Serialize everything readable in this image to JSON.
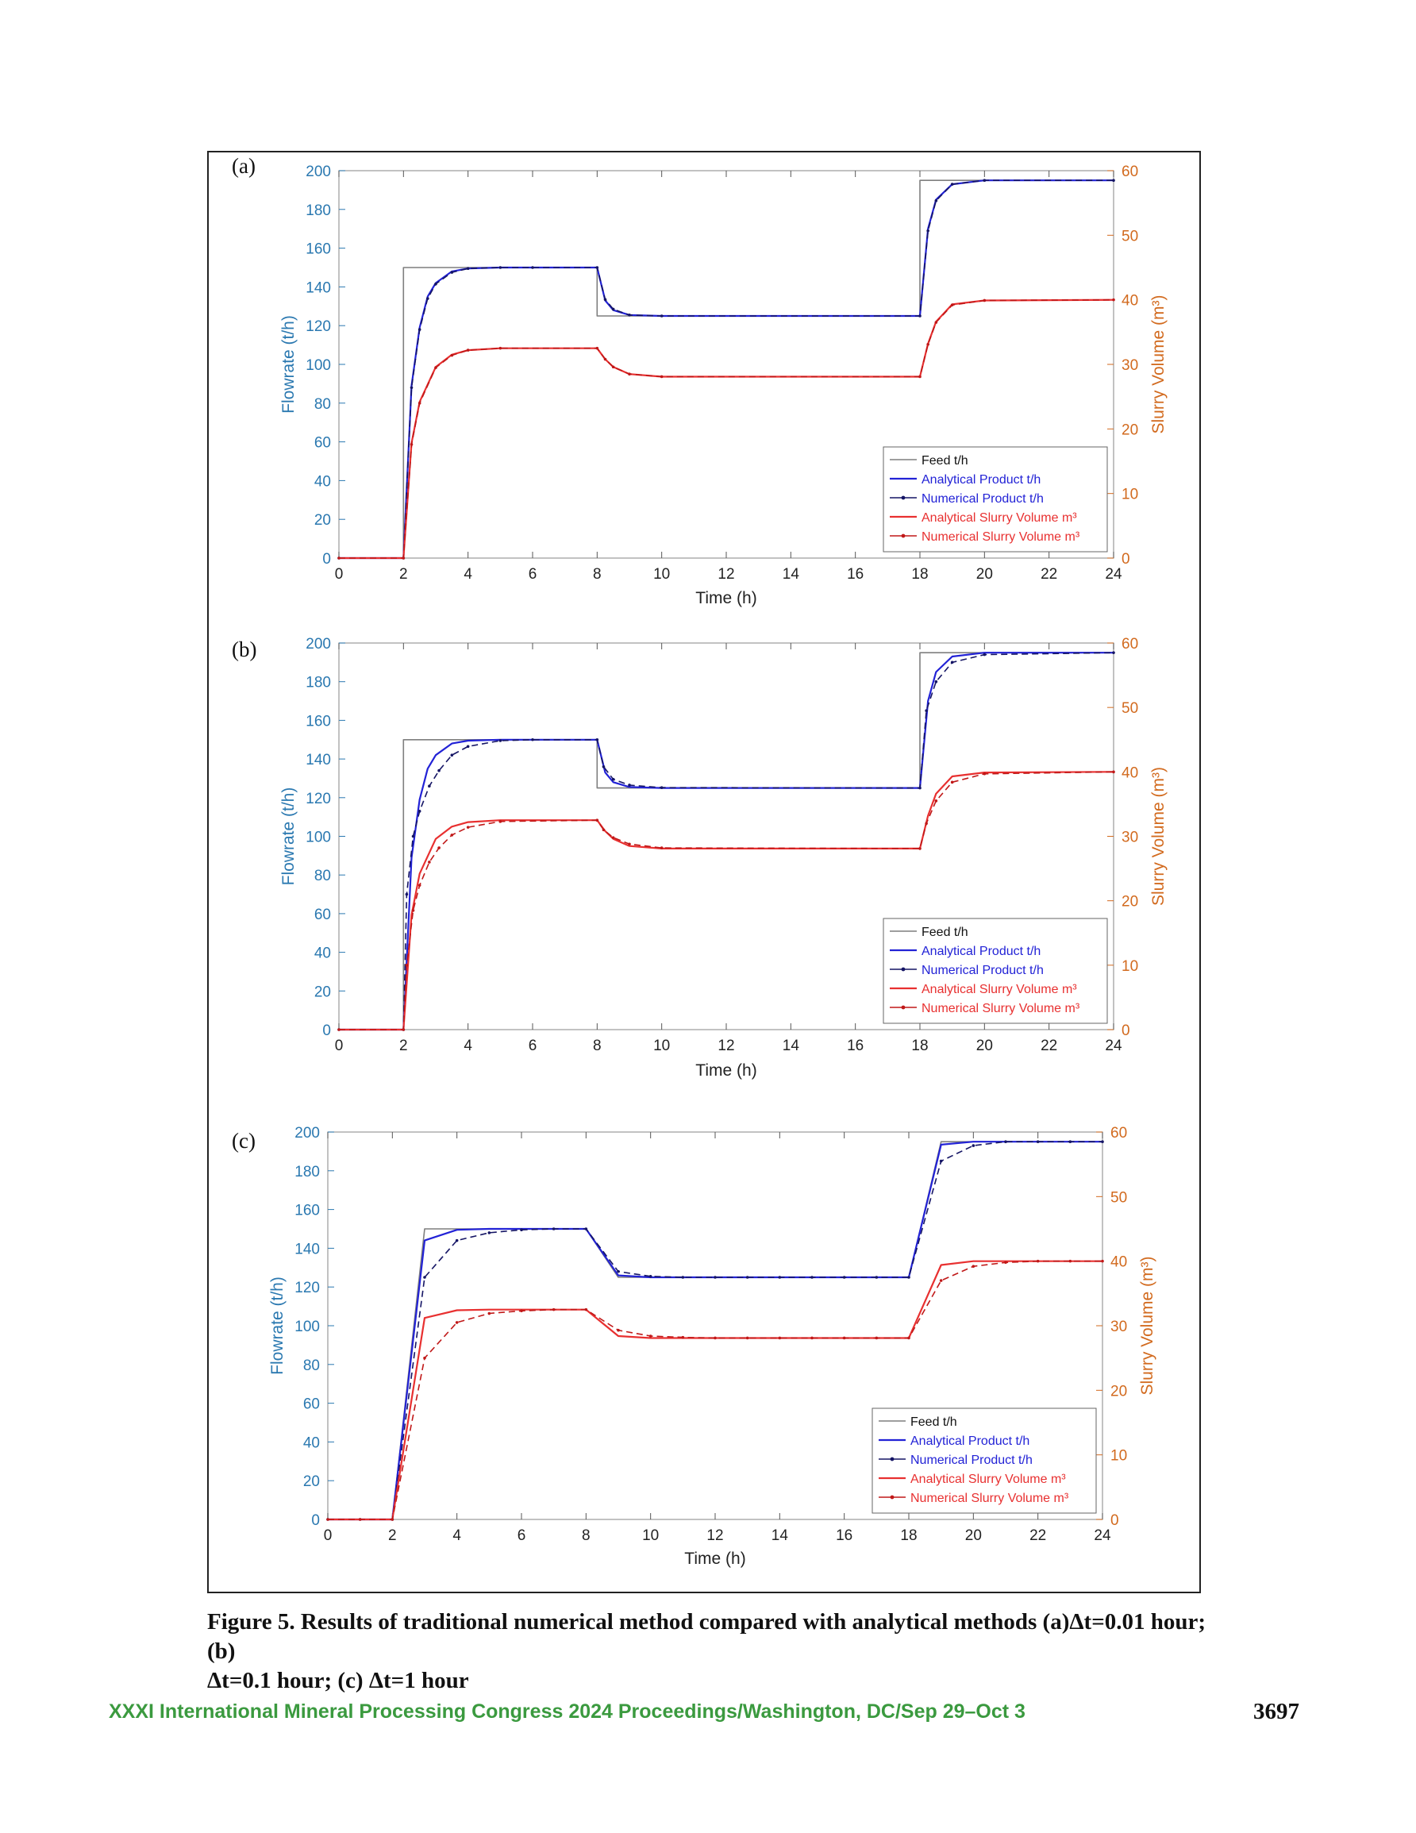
{
  "figure": {
    "caption_line1": "Figure 5. Results of traditional numerical method compared with analytical methods (a)Δt=0.01 hour; (b)",
    "caption_line2": "Δt=0.1 hour; (c) Δt=1 hour"
  },
  "footer": {
    "conference": "XXXI International Mineral Processing Congress 2024 Proceedings/Washington, DC/Sep 29–Oct 3",
    "page_number": "3697"
  },
  "colors": {
    "feed": "#7f7f7f",
    "analytical_product": "#2222d6",
    "numerical_product": "#151565",
    "analytical_slurry": "#e83030",
    "numerical_slurry": "#c01818",
    "left_axis": "#2a78b0",
    "right_axis": "#d26a1e"
  },
  "chart_data": [
    {
      "type": "line",
      "panel_label": "(a)",
      "xlabel": "Time (h)",
      "ylabel": "Flowrate (t/h)",
      "ylabel_right": "Slurry Volume (m³)",
      "xlim": [
        0,
        24
      ],
      "ylim": [
        0,
        200
      ],
      "ylim_right": [
        0,
        60
      ],
      "x_ticks": [
        0,
        2,
        4,
        6,
        8,
        10,
        12,
        14,
        16,
        18,
        20,
        22,
        24
      ],
      "y_ticks": [
        0,
        20,
        40,
        60,
        80,
        100,
        120,
        140,
        160,
        180,
        200
      ],
      "y_right_ticks": [
        0,
        10,
        20,
        30,
        40,
        50,
        60
      ],
      "legend_position": "bottom-right",
      "legend": [
        "Feed t/h",
        "Analytical Product t/h",
        "Numerical Product t/h",
        "Analytical Slurry Volume m³",
        "Numerical Slurry Volume m³"
      ],
      "series": [
        {
          "name": "Feed t/h",
          "axis": "left",
          "x": [
            0,
            2,
            2,
            8,
            8,
            18,
            18,
            24
          ],
          "y": [
            0,
            0,
            150,
            150,
            125,
            125,
            195,
            195
          ]
        },
        {
          "name": "Analytical Product t/h",
          "axis": "left",
          "x": [
            0,
            2,
            2.25,
            2.5,
            2.75,
            3,
            3.5,
            4,
            5,
            6,
            8,
            8.25,
            8.5,
            9,
            10,
            18,
            18.25,
            18.5,
            19,
            20,
            24
          ],
          "y": [
            0,
            0,
            89,
            119,
            135,
            142,
            148,
            149.5,
            150,
            150,
            150,
            133,
            128,
            125.5,
            125,
            125,
            170,
            185,
            193,
            195,
            195
          ]
        },
        {
          "name": "Numerical Product t/h",
          "axis": "left",
          "x": [
            0,
            2,
            2.25,
            2.5,
            2.75,
            3,
            3.5,
            4,
            5,
            6,
            8,
            8.25,
            8.5,
            9,
            10,
            18,
            18.25,
            18.5,
            19,
            20,
            24
          ],
          "y": [
            0,
            0,
            88,
            118,
            134,
            141.5,
            147.5,
            149.5,
            150,
            150,
            150,
            133.5,
            128.5,
            125.5,
            125,
            125,
            169,
            184.5,
            193,
            195,
            195
          ]
        },
        {
          "name": "Analytical Slurry Volume m³",
          "axis": "right",
          "x": [
            0,
            2,
            2.25,
            2.5,
            3,
            3.5,
            4,
            5,
            8,
            8.25,
            8.5,
            9,
            10,
            18,
            18.25,
            18.5,
            19,
            20,
            24
          ],
          "y": [
            0,
            0,
            17.8,
            24.2,
            29.6,
            31.5,
            32.2,
            32.5,
            32.5,
            30.8,
            29.6,
            28.5,
            28.1,
            28.1,
            33.2,
            36.6,
            39.3,
            39.9,
            40
          ]
        },
        {
          "name": "Numerical Slurry Volume m³",
          "axis": "right",
          "x": [
            0,
            2,
            2.25,
            2.5,
            3,
            3.5,
            4,
            5,
            8,
            8.25,
            8.5,
            9,
            10,
            18,
            18.25,
            18.5,
            19,
            20,
            24
          ],
          "y": [
            0,
            0,
            17.6,
            24.0,
            29.5,
            31.4,
            32.2,
            32.5,
            32.5,
            30.8,
            29.6,
            28.5,
            28.1,
            28.1,
            33.1,
            36.5,
            39.2,
            39.9,
            40
          ]
        }
      ]
    },
    {
      "type": "line",
      "panel_label": "(b)",
      "xlabel": "Time (h)",
      "ylabel": "Flowrate (t/h)",
      "ylabel_right": "Slurry Volume (m³)",
      "xlim": [
        0,
        24
      ],
      "ylim": [
        0,
        200
      ],
      "ylim_right": [
        0,
        60
      ],
      "x_ticks": [
        0,
        2,
        4,
        6,
        8,
        10,
        12,
        14,
        16,
        18,
        20,
        22,
        24
      ],
      "y_ticks": [
        0,
        20,
        40,
        60,
        80,
        100,
        120,
        140,
        160,
        180,
        200
      ],
      "y_right_ticks": [
        0,
        10,
        20,
        30,
        40,
        50,
        60
      ],
      "legend_position": "bottom-right",
      "legend": [
        "Feed t/h",
        "Analytical Product t/h",
        "Numerical Product t/h",
        "Analytical Slurry Volume m³",
        "Numerical Slurry Volume m³"
      ],
      "series": [
        {
          "name": "Feed t/h",
          "axis": "left",
          "x": [
            0,
            2,
            2,
            8,
            8,
            18,
            18,
            24
          ],
          "y": [
            0,
            0,
            150,
            150,
            125,
            125,
            195,
            195
          ]
        },
        {
          "name": "Analytical Product t/h",
          "axis": "left",
          "x": [
            0,
            2,
            2.25,
            2.5,
            2.75,
            3,
            3.5,
            4,
            5,
            6,
            8,
            8.25,
            8.5,
            9,
            10,
            18,
            18.25,
            18.5,
            19,
            20,
            24
          ],
          "y": [
            0,
            0,
            89,
            119,
            135,
            142,
            148,
            149.5,
            150,
            150,
            150,
            133,
            128,
            125.5,
            125,
            125,
            170,
            185,
            193,
            195,
            195
          ]
        },
        {
          "name": "Numerical Product t/h",
          "axis": "left",
          "x": [
            0,
            2,
            2.1,
            2.3,
            2.5,
            2.8,
            3.1,
            3.5,
            4,
            5,
            6,
            8,
            8.2,
            8.5,
            9,
            10,
            18,
            18.2,
            18.5,
            19,
            20,
            24
          ],
          "y": [
            0,
            0,
            70,
            100,
            113,
            126,
            134,
            142,
            146.5,
            149.5,
            150,
            150,
            136,
            129.5,
            126.5,
            125.2,
            125,
            165,
            180,
            190,
            194,
            195
          ]
        },
        {
          "name": "Analytical Slurry Volume m³",
          "axis": "right",
          "x": [
            0,
            2,
            2.25,
            2.5,
            3,
            3.5,
            4,
            5,
            8,
            8.25,
            8.5,
            9,
            10,
            18,
            18.25,
            18.5,
            19,
            20,
            24
          ],
          "y": [
            0,
            0,
            17.8,
            24.2,
            29.6,
            31.5,
            32.2,
            32.5,
            32.5,
            30.8,
            29.6,
            28.5,
            28.1,
            28.1,
            33.2,
            36.6,
            39.3,
            39.9,
            40
          ]
        },
        {
          "name": "Numerical Slurry Volume m³",
          "axis": "right",
          "x": [
            0,
            2,
            2.1,
            2.3,
            2.5,
            2.8,
            3.1,
            3.5,
            4,
            5,
            8,
            8.2,
            8.5,
            9,
            10,
            18,
            18.2,
            18.5,
            19,
            20,
            24
          ],
          "y": [
            0,
            0,
            10,
            18.5,
            22.4,
            26.0,
            28.2,
            30.2,
            31.4,
            32.3,
            32.5,
            31.0,
            29.8,
            28.8,
            28.2,
            28.1,
            32.0,
            35.5,
            38.4,
            39.7,
            40
          ]
        }
      ]
    },
    {
      "type": "line",
      "panel_label": "(c)",
      "xlabel": "Time (h)",
      "ylabel": "Flowrate (t/h)",
      "ylabel_right": "Slurry Volume (m³)",
      "xlim": [
        0,
        24
      ],
      "ylim": [
        0,
        200
      ],
      "ylim_right": [
        0,
        60
      ],
      "x_ticks": [
        0,
        2,
        4,
        6,
        8,
        10,
        12,
        14,
        16,
        18,
        20,
        22,
        24
      ],
      "y_ticks": [
        0,
        20,
        40,
        60,
        80,
        100,
        120,
        140,
        160,
        180,
        200
      ],
      "y_right_ticks": [
        0,
        10,
        20,
        30,
        40,
        50,
        60
      ],
      "legend_position": "bottom-right",
      "legend": [
        "Feed t/h",
        "Analytical Product t/h",
        "Numerical Product t/h",
        "Analytical Slurry Volume m³",
        "Numerical Slurry Volume m³"
      ],
      "series": [
        {
          "name": "Feed t/h",
          "axis": "left",
          "x": [
            0,
            1,
            2,
            3,
            4,
            5,
            6,
            7,
            8,
            9,
            10,
            11,
            12,
            13,
            14,
            15,
            16,
            17,
            18,
            19,
            20,
            21,
            22,
            23,
            24
          ],
          "y": [
            0,
            0,
            0,
            150,
            150,
            150,
            150,
            150,
            150,
            125,
            125,
            125,
            125,
            125,
            125,
            125,
            125,
            125,
            125,
            195,
            195,
            195,
            195,
            195,
            195
          ]
        },
        {
          "name": "Analytical Product t/h",
          "axis": "left",
          "x": [
            0,
            1,
            2,
            3,
            4,
            5,
            6,
            7,
            8,
            9,
            10,
            11,
            12,
            13,
            14,
            15,
            16,
            17,
            18,
            19,
            20,
            21,
            22,
            23,
            24
          ],
          "y": [
            0,
            0,
            0,
            144,
            149.5,
            150,
            150,
            150,
            150,
            126,
            125,
            125,
            125,
            125,
            125,
            125,
            125,
            125,
            125,
            193.5,
            195,
            195,
            195,
            195,
            195
          ]
        },
        {
          "name": "Numerical Product t/h",
          "axis": "left",
          "x": [
            0,
            1,
            2,
            3,
            4,
            5,
            6,
            7,
            8,
            9,
            10,
            11,
            12,
            13,
            14,
            15,
            16,
            17,
            18,
            19,
            20,
            21,
            22,
            23,
            24
          ],
          "y": [
            0,
            0,
            0,
            125,
            144,
            148,
            149.5,
            150,
            150,
            128,
            125.5,
            125,
            125,
            125,
            125,
            125,
            125,
            125,
            125,
            185,
            193,
            195,
            195,
            195,
            195
          ]
        },
        {
          "name": "Analytical Slurry Volume m³",
          "axis": "right",
          "x": [
            0,
            1,
            2,
            3,
            4,
            5,
            6,
            7,
            8,
            9,
            10,
            11,
            12,
            13,
            14,
            15,
            16,
            17,
            18,
            19,
            20,
            21,
            22,
            23,
            24
          ],
          "y": [
            0,
            0,
            0,
            31.2,
            32.4,
            32.5,
            32.5,
            32.5,
            32.5,
            28.4,
            28.1,
            28.1,
            28.1,
            28.1,
            28.1,
            28.1,
            28.1,
            28.1,
            28.1,
            39.4,
            40,
            40,
            40,
            40,
            40
          ]
        },
        {
          "name": "Numerical Slurry Volume m³",
          "axis": "right",
          "x": [
            0,
            1,
            2,
            3,
            4,
            5,
            6,
            7,
            8,
            9,
            10,
            11,
            12,
            13,
            14,
            15,
            16,
            17,
            18,
            19,
            20,
            21,
            22,
            23,
            24
          ],
          "y": [
            0,
            0,
            0,
            25,
            30.5,
            31.9,
            32.3,
            32.5,
            32.5,
            29.3,
            28.4,
            28.2,
            28.1,
            28.1,
            28.1,
            28.1,
            28.1,
            28.1,
            28.1,
            37,
            39.2,
            39.8,
            40,
            40,
            40
          ]
        }
      ]
    }
  ]
}
